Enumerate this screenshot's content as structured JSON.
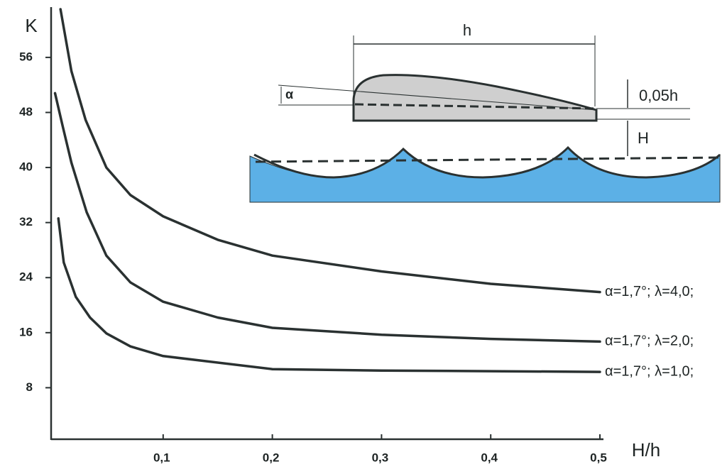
{
  "chart_data": {
    "type": "line",
    "x_label": "H/h",
    "y_label": "K",
    "xlim": [
      0,
      0.5
    ],
    "ylim": [
      0,
      63
    ],
    "xticks": [
      {
        "value": 0.1,
        "label": "0,1"
      },
      {
        "value": 0.2,
        "label": "0,2"
      },
      {
        "value": 0.3,
        "label": "0,3"
      },
      {
        "value": 0.4,
        "label": "0,4"
      },
      {
        "value": 0.5,
        "label": "0,5"
      }
    ],
    "yticks": [
      8,
      16,
      24,
      32,
      40,
      48,
      56
    ],
    "grid": false,
    "series": [
      {
        "name": "α=1,7°; λ=4,0;",
        "color": "#2a3131",
        "x": [
          0.006,
          0.016,
          0.029,
          0.048,
          0.07,
          0.1,
          0.15,
          0.2,
          0.3,
          0.4,
          0.5
        ],
        "values": [
          63,
          54,
          46.9,
          40,
          36,
          32.9,
          29.5,
          27.2,
          24.9,
          23.1,
          21.9
        ]
      },
      {
        "name": "α=1,7°; λ=2,0;",
        "color": "#2a3131",
        "x": [
          0.001,
          0.008,
          0.016,
          0.03,
          0.048,
          0.07,
          0.1,
          0.15,
          0.2,
          0.3,
          0.4,
          0.5
        ],
        "values": [
          50.8,
          46,
          40.7,
          33.5,
          27.2,
          23.3,
          20.5,
          18.2,
          16.7,
          15.7,
          15.1,
          14.7
        ]
      },
      {
        "name": "α=1,7°; λ=1,0;",
        "color": "#2a3131",
        "x": [
          0.004,
          0.009,
          0.02,
          0.033,
          0.048,
          0.07,
          0.1,
          0.2,
          0.3,
          0.4,
          0.5
        ],
        "values": [
          32.6,
          26.2,
          21.2,
          18.2,
          15.9,
          14,
          12.6,
          10.7,
          10.5,
          10.4,
          10.3
        ]
      }
    ],
    "annotations": [
      "h",
      "α",
      "0,05h",
      "H"
    ]
  }
}
